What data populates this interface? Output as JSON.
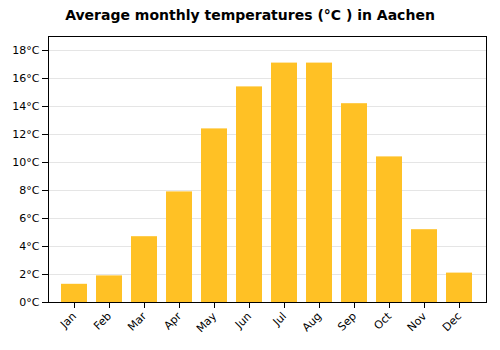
{
  "chart_data": {
    "type": "bar",
    "title": "Average monthly temperatures (°C ) in Aachen",
    "categories": [
      "Jan",
      "Feb",
      "Mar",
      "Apr",
      "May",
      "Jun",
      "Jul",
      "Aug",
      "Sep",
      "Oct",
      "Nov",
      "Dec"
    ],
    "values": [
      1.3,
      1.9,
      4.7,
      7.9,
      12.4,
      15.4,
      17.1,
      17.1,
      14.2,
      10.4,
      5.2,
      2.1
    ],
    "color": "#FFC125",
    "ylim": [
      0,
      19
    ],
    "yticks": [
      {
        "value": 0,
        "label": "0°C"
      },
      {
        "value": 2,
        "label": "2°C"
      },
      {
        "value": 4,
        "label": "4°C"
      },
      {
        "value": 6,
        "label": "6°C"
      },
      {
        "value": 8,
        "label": "8°C"
      },
      {
        "value": 10,
        "label": "10°C"
      },
      {
        "value": 12,
        "label": "12°C"
      },
      {
        "value": 14,
        "label": "14°C"
      },
      {
        "value": 16,
        "label": "16°C"
      },
      {
        "value": 18,
        "label": "18°C"
      }
    ],
    "grid": true
  }
}
